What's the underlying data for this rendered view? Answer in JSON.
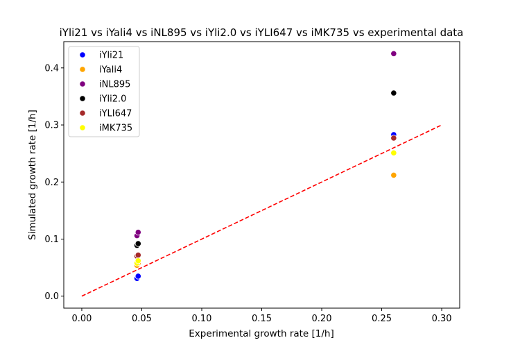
{
  "chart_data": {
    "type": "scatter",
    "title": "iYli21 vs iYali4 vs iNL895 vs iYli2.0 vs iYLI647 vs iMK735 vs experimental data",
    "xlabel": "Experimental growth rate [1/h]",
    "ylabel": "Simulated growth rate [1/h]",
    "xlim": [
      -0.015,
      0.315
    ],
    "ylim": [
      -0.021,
      0.446
    ],
    "xticks": [
      "0.00",
      "0.05",
      "0.10",
      "0.15",
      "0.20",
      "0.25",
      "0.30"
    ],
    "yticks": [
      "0.0",
      "0.1",
      "0.2",
      "0.3",
      "0.4"
    ],
    "legend_position": "upper-left",
    "grid": false,
    "reference_line": {
      "x": [
        0,
        0.3
      ],
      "y": [
        0,
        0.3
      ],
      "color": "#ff0000",
      "style": "dashed"
    },
    "series": [
      {
        "name": "iYli21",
        "color": "#0000ff",
        "x": [
          0.046,
          0.047,
          0.26
        ],
        "y": [
          0.031,
          0.035,
          0.283
        ]
      },
      {
        "name": "iYali4",
        "color": "#ffa500",
        "x": [
          0.046,
          0.047,
          0.26
        ],
        "y": [
          0.054,
          0.058,
          0.212
        ]
      },
      {
        "name": "iNL895",
        "color": "#800080",
        "x": [
          0.046,
          0.047,
          0.26
        ],
        "y": [
          0.106,
          0.112,
          0.425
        ]
      },
      {
        "name": "iYli2.0",
        "color": "#000000",
        "x": [
          0.046,
          0.047,
          0.26
        ],
        "y": [
          0.089,
          0.092,
          0.356
        ]
      },
      {
        "name": "iYLI647",
        "color": "#a52a2a",
        "x": [
          0.046,
          0.047,
          0.26
        ],
        "y": [
          0.07,
          0.072,
          0.277
        ]
      },
      {
        "name": "iMK735",
        "color": "#ffff00",
        "x": [
          0.046,
          0.047,
          0.26
        ],
        "y": [
          0.058,
          0.062,
          0.251
        ]
      }
    ]
  }
}
